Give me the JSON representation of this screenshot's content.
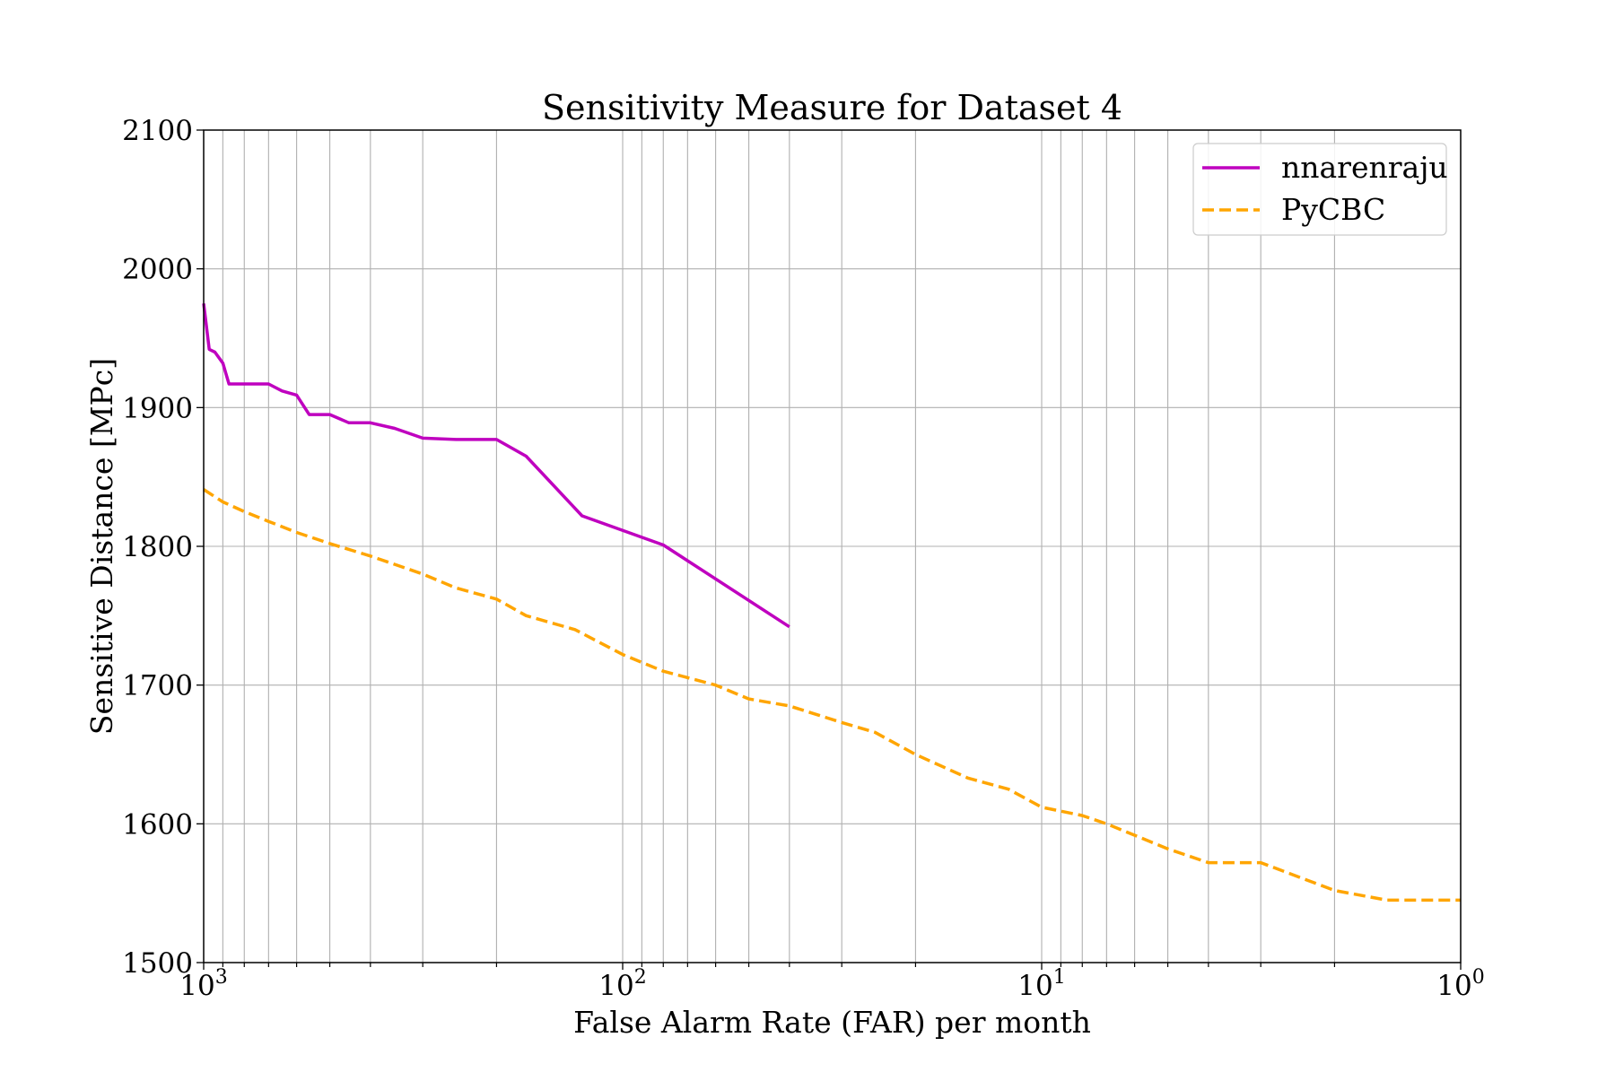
{
  "chart_data": {
    "type": "line",
    "title": "Sensitivity Measure for Dataset 4",
    "xlabel": "False Alarm Rate (FAR) per month",
    "ylabel": "Sensitive Distance [MPc]",
    "x_scale": "log",
    "x_reversed": true,
    "xlim": [
      1000,
      1
    ],
    "ylim": [
      1500,
      2100
    ],
    "grid": true,
    "legend_position": "top-right",
    "x_ticks": [
      {
        "value": 1000,
        "base": "10",
        "exp": "3"
      },
      {
        "value": 100,
        "base": "10",
        "exp": "2"
      },
      {
        "value": 10,
        "base": "10",
        "exp": "1"
      },
      {
        "value": 1,
        "base": "10",
        "exp": "0"
      }
    ],
    "y_ticks": [
      "1500",
      "1600",
      "1700",
      "1800",
      "1900",
      "2000",
      "2100"
    ],
    "series": [
      {
        "name": "nnarenraju",
        "color": "#bf00bf",
        "style": "solid",
        "x": [
          1000,
          970,
          940,
          900,
          870,
          800,
          700,
          650,
          600,
          560,
          500,
          450,
          400,
          350,
          300,
          250,
          200,
          170,
          125,
          80,
          40
        ],
        "y": [
          1975,
          1942,
          1940,
          1932,
          1917,
          1917,
          1917,
          1912,
          1909,
          1895,
          1895,
          1889,
          1889,
          1885,
          1878,
          1877,
          1877,
          1865,
          1822,
          1801,
          1742
        ]
      },
      {
        "name": "PyCBC",
        "color": "#ffa500",
        "style": "dashed",
        "x": [
          1000,
          900,
          800,
          700,
          600,
          500,
          400,
          300,
          250,
          200,
          170,
          130,
          100,
          80,
          60,
          50,
          40,
          30,
          25,
          20,
          15,
          12,
          10,
          8,
          7,
          5,
          4,
          3,
          2,
          1.5,
          1
        ],
        "y": [
          1841,
          1832,
          1825,
          1818,
          1810,
          1802,
          1793,
          1780,
          1770,
          1762,
          1750,
          1740,
          1722,
          1710,
          1700,
          1690,
          1685,
          1673,
          1666,
          1650,
          1633,
          1625,
          1612,
          1606,
          1600,
          1582,
          1572,
          1572,
          1552,
          1545,
          1545
        ]
      }
    ]
  }
}
